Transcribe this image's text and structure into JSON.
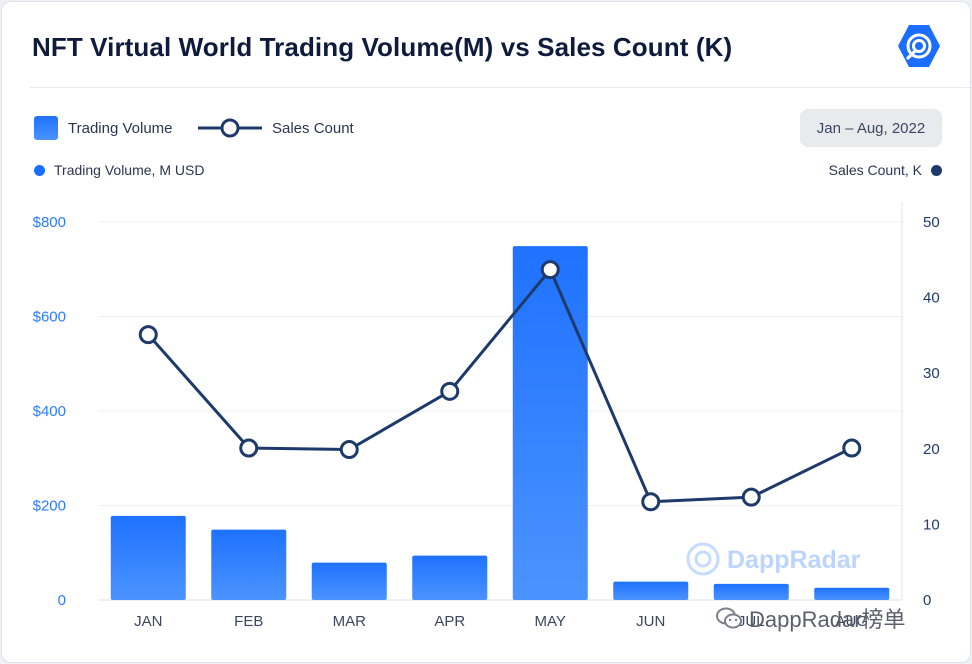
{
  "title": "NFT Virtual World Trading Volume(M) vs Sales Count (K)",
  "legend": {
    "volume_label": "Trading Volume",
    "sales_label": "Sales Count"
  },
  "date_range": "Jan – Aug, 2022",
  "axis_captions": {
    "left": "Trading Volume, M USD",
    "right": "Sales Count, K"
  },
  "watermark": "DappRadar",
  "watermark2": "DappRadar榜单",
  "colors": {
    "bar_top": "#1f72ff",
    "bar_bottom": "#4b93ff",
    "line": "#1d3a6b",
    "left_axis": "#2d7bff"
  },
  "chart_data": {
    "type": "bar",
    "categories": [
      "JAN",
      "FEB",
      "MAR",
      "APR",
      "MAY",
      "JUN",
      "JUL",
      "AUG"
    ],
    "series": [
      {
        "name": "Trading Volume",
        "type": "bar",
        "axis": "left",
        "unit": "M USD",
        "values": [
          178,
          149,
          79,
          94,
          749,
          39,
          34,
          26
        ]
      },
      {
        "name": "Sales Count",
        "type": "line",
        "axis": "right",
        "unit": "K",
        "values": [
          35.1,
          20.1,
          19.9,
          27.6,
          43.7,
          13.0,
          13.6,
          20.1
        ]
      }
    ],
    "y_left": {
      "min": 0,
      "max": 800,
      "ticks": [
        0,
        200,
        400,
        600,
        800
      ],
      "tick_labels": [
        "0",
        "$200",
        "$400",
        "$600",
        "$800"
      ]
    },
    "y_right": {
      "min": 0,
      "max": 50,
      "ticks": [
        0,
        10,
        20,
        30,
        40,
        50
      ],
      "tick_labels": [
        "0",
        "10",
        "20",
        "30",
        "40",
        "50"
      ]
    },
    "grid": true
  }
}
